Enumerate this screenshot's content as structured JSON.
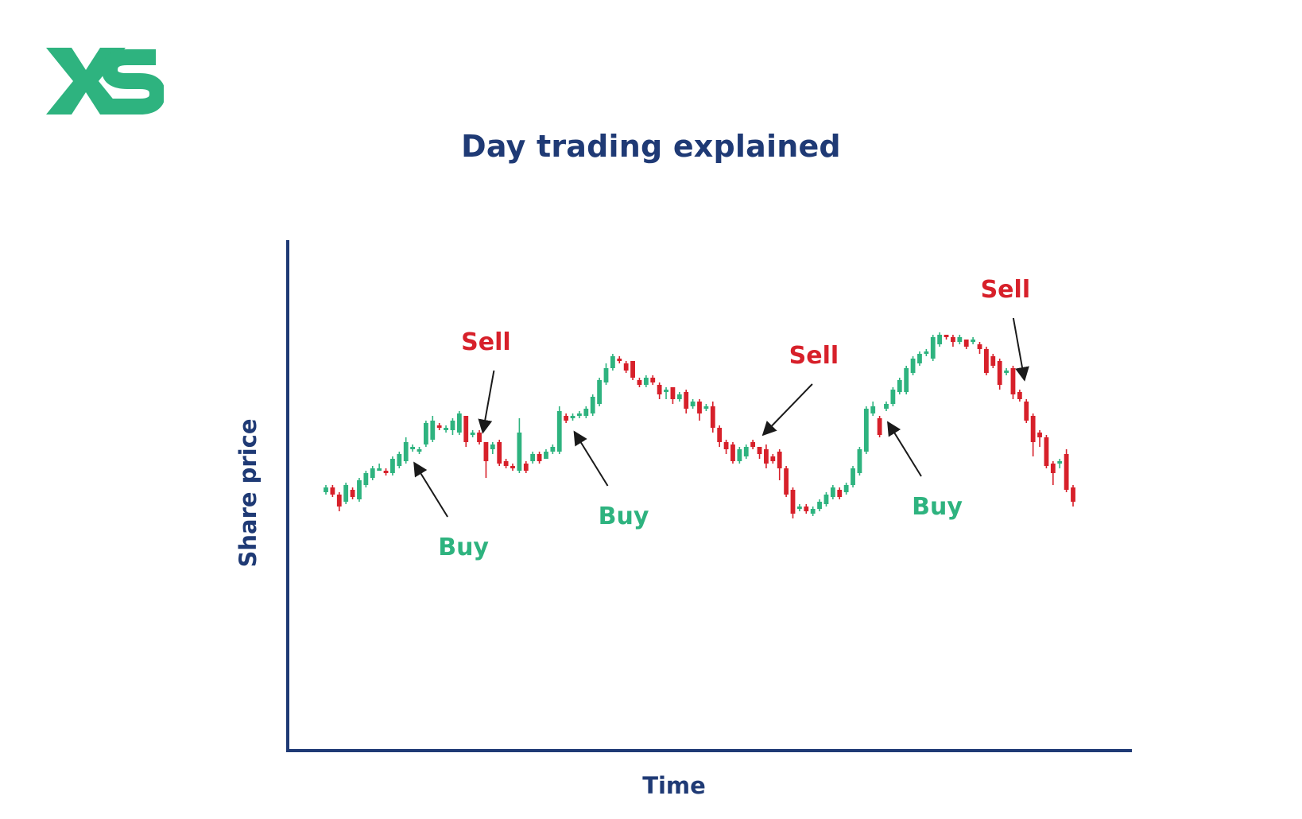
{
  "brand": {
    "logo_text": "XS",
    "logo_color": "#2eb37f"
  },
  "title": "Day trading explained",
  "colors": {
    "up": "#2eb37f",
    "down": "#d7202a",
    "axis": "#1f3a75",
    "arrow": "#1a1a1a"
  },
  "chart_data": {
    "type": "candlestick",
    "title": "Day trading explained",
    "xlabel": "Time",
    "ylabel": "Share price",
    "grid": false,
    "annotations": [
      {
        "label": "Buy",
        "candle": 13
      },
      {
        "label": "Sell",
        "candle": 24
      },
      {
        "label": "Buy",
        "candle": 37
      },
      {
        "label": "Sell",
        "candle": 66
      },
      {
        "label": "Buy",
        "candle": 84
      },
      {
        "label": "Sell",
        "candle": 104
      }
    ],
    "candles": [
      [
        0.41,
        0.43,
        0.44,
        0.4
      ],
      [
        0.43,
        0.4,
        0.44,
        0.39
      ],
      [
        0.4,
        0.35,
        0.41,
        0.33
      ],
      [
        0.37,
        0.44,
        0.45,
        0.36
      ],
      [
        0.42,
        0.39,
        0.43,
        0.38
      ],
      [
        0.38,
        0.46,
        0.47,
        0.37
      ],
      [
        0.44,
        0.49,
        0.5,
        0.43
      ],
      [
        0.47,
        0.51,
        0.52,
        0.46
      ],
      [
        0.51,
        0.51,
        0.53,
        0.5
      ],
      [
        0.5,
        0.49,
        0.51,
        0.48
      ],
      [
        0.49,
        0.55,
        0.56,
        0.48
      ],
      [
        0.52,
        0.57,
        0.58,
        0.51
      ],
      [
        0.54,
        0.62,
        0.64,
        0.53
      ],
      [
        0.59,
        0.6,
        0.61,
        0.58
      ],
      [
        0.58,
        0.59,
        0.6,
        0.57
      ],
      [
        0.61,
        0.7,
        0.71,
        0.6
      ],
      [
        0.63,
        0.71,
        0.73,
        0.62
      ],
      [
        0.69,
        0.68,
        0.7,
        0.67
      ],
      [
        0.67,
        0.68,
        0.69,
        0.66
      ],
      [
        0.67,
        0.71,
        0.72,
        0.65
      ],
      [
        0.66,
        0.74,
        0.75,
        0.65
      ],
      [
        0.73,
        0.62,
        0.73,
        0.6
      ],
      [
        0.65,
        0.66,
        0.67,
        0.64
      ],
      [
        0.66,
        0.62,
        0.67,
        0.61
      ],
      [
        0.62,
        0.54,
        0.62,
        0.47
      ],
      [
        0.59,
        0.61,
        0.62,
        0.57
      ],
      [
        0.62,
        0.53,
        0.63,
        0.52
      ],
      [
        0.54,
        0.52,
        0.55,
        0.51
      ],
      [
        0.52,
        0.51,
        0.53,
        0.5
      ],
      [
        0.5,
        0.66,
        0.72,
        0.49
      ],
      [
        0.53,
        0.5,
        0.54,
        0.49
      ],
      [
        0.54,
        0.57,
        0.58,
        0.53
      ],
      [
        0.57,
        0.54,
        0.58,
        0.53
      ],
      [
        0.55,
        0.58,
        0.59,
        0.55
      ],
      [
        0.58,
        0.6,
        0.61,
        0.57
      ],
      [
        0.58,
        0.75,
        0.77,
        0.57
      ],
      [
        0.73,
        0.71,
        0.74,
        0.7
      ],
      [
        0.72,
        0.73,
        0.74,
        0.71
      ],
      [
        0.74,
        0.74,
        0.75,
        0.72
      ],
      [
        0.73,
        0.76,
        0.77,
        0.72
      ],
      [
        0.74,
        0.81,
        0.82,
        0.73
      ],
      [
        0.78,
        0.88,
        0.89,
        0.77
      ],
      [
        0.87,
        0.93,
        0.95,
        0.86
      ],
      [
        0.93,
        0.98,
        0.99,
        0.92
      ],
      [
        0.97,
        0.96,
        0.98,
        0.95
      ],
      [
        0.95,
        0.92,
        0.96,
        0.91
      ],
      [
        0.96,
        0.89,
        0.96,
        0.88
      ],
      [
        0.88,
        0.86,
        0.89,
        0.85
      ],
      [
        0.86,
        0.89,
        0.9,
        0.85
      ],
      [
        0.89,
        0.87,
        0.9,
        0.86
      ],
      [
        0.86,
        0.82,
        0.87,
        0.8
      ],
      [
        0.83,
        0.84,
        0.85,
        0.8
      ],
      [
        0.85,
        0.8,
        0.85,
        0.78
      ],
      [
        0.8,
        0.82,
        0.83,
        0.79
      ],
      [
        0.83,
        0.76,
        0.84,
        0.74
      ],
      [
        0.77,
        0.79,
        0.8,
        0.76
      ],
      [
        0.79,
        0.74,
        0.8,
        0.71
      ],
      [
        0.76,
        0.77,
        0.78,
        0.75
      ],
      [
        0.77,
        0.68,
        0.79,
        0.66
      ],
      [
        0.68,
        0.62,
        0.69,
        0.6
      ],
      [
        0.62,
        0.59,
        0.63,
        0.57
      ],
      [
        0.61,
        0.54,
        0.62,
        0.53
      ],
      [
        0.54,
        0.59,
        0.6,
        0.53
      ],
      [
        0.56,
        0.6,
        0.61,
        0.55
      ],
      [
        0.62,
        0.6,
        0.63,
        0.59
      ],
      [
        0.6,
        0.57,
        0.6,
        0.55
      ],
      [
        0.59,
        0.53,
        0.61,
        0.51
      ],
      [
        0.56,
        0.54,
        0.57,
        0.53
      ],
      [
        0.58,
        0.51,
        0.59,
        0.46
      ],
      [
        0.51,
        0.4,
        0.52,
        0.39
      ],
      [
        0.42,
        0.32,
        0.43,
        0.3
      ],
      [
        0.34,
        0.35,
        0.36,
        0.33
      ],
      [
        0.35,
        0.33,
        0.36,
        0.32
      ],
      [
        0.32,
        0.34,
        0.35,
        0.31
      ],
      [
        0.34,
        0.37,
        0.38,
        0.33
      ],
      [
        0.36,
        0.4,
        0.41,
        0.35
      ],
      [
        0.39,
        0.43,
        0.44,
        0.38
      ],
      [
        0.42,
        0.39,
        0.43,
        0.38
      ],
      [
        0.41,
        0.44,
        0.45,
        0.4
      ],
      [
        0.44,
        0.51,
        0.52,
        0.43
      ],
      [
        0.49,
        0.59,
        0.6,
        0.48
      ],
      [
        0.58,
        0.76,
        0.77,
        0.57
      ],
      [
        0.74,
        0.77,
        0.79,
        0.73
      ],
      [
        0.72,
        0.65,
        0.73,
        0.64
      ],
      [
        0.76,
        0.78,
        0.79,
        0.75
      ],
      [
        0.78,
        0.84,
        0.85,
        0.77
      ],
      [
        0.83,
        0.88,
        0.89,
        0.82
      ],
      [
        0.83,
        0.93,
        0.94,
        0.82
      ],
      [
        0.91,
        0.97,
        0.98,
        0.9
      ],
      [
        0.95,
        0.99,
        1.0,
        0.94
      ],
      [
        0.99,
        1.0,
        1.01,
        0.98
      ],
      [
        0.97,
        1.06,
        1.07,
        0.96
      ],
      [
        1.03,
        1.07,
        1.08,
        1.02
      ],
      [
        1.07,
        1.06,
        1.07,
        1.05
      ],
      [
        1.06,
        1.04,
        1.07,
        1.02
      ],
      [
        1.04,
        1.06,
        1.07,
        1.03
      ],
      [
        1.05,
        1.02,
        1.05,
        1.01
      ],
      [
        1.04,
        1.05,
        1.06,
        1.03
      ],
      [
        1.03,
        1.01,
        1.04,
        0.99
      ],
      [
        1.01,
        0.91,
        1.02,
        0.9
      ],
      [
        0.98,
        0.94,
        0.99,
        0.93
      ],
      [
        0.96,
        0.86,
        0.97,
        0.84
      ],
      [
        0.91,
        0.92,
        0.93,
        0.9
      ],
      [
        0.93,
        0.82,
        0.94,
        0.8
      ],
      [
        0.83,
        0.8,
        0.84,
        0.79
      ],
      [
        0.79,
        0.71,
        0.8,
        0.7
      ],
      [
        0.73,
        0.62,
        0.74,
        0.56
      ],
      [
        0.66,
        0.64,
        0.67,
        0.6
      ],
      [
        0.64,
        0.52,
        0.65,
        0.51
      ],
      [
        0.53,
        0.49,
        0.54,
        0.44
      ],
      [
        0.53,
        0.54,
        0.55,
        0.51
      ],
      [
        0.57,
        0.42,
        0.59,
        0.41
      ],
      [
        0.43,
        0.37,
        0.44,
        0.35
      ]
    ]
  }
}
